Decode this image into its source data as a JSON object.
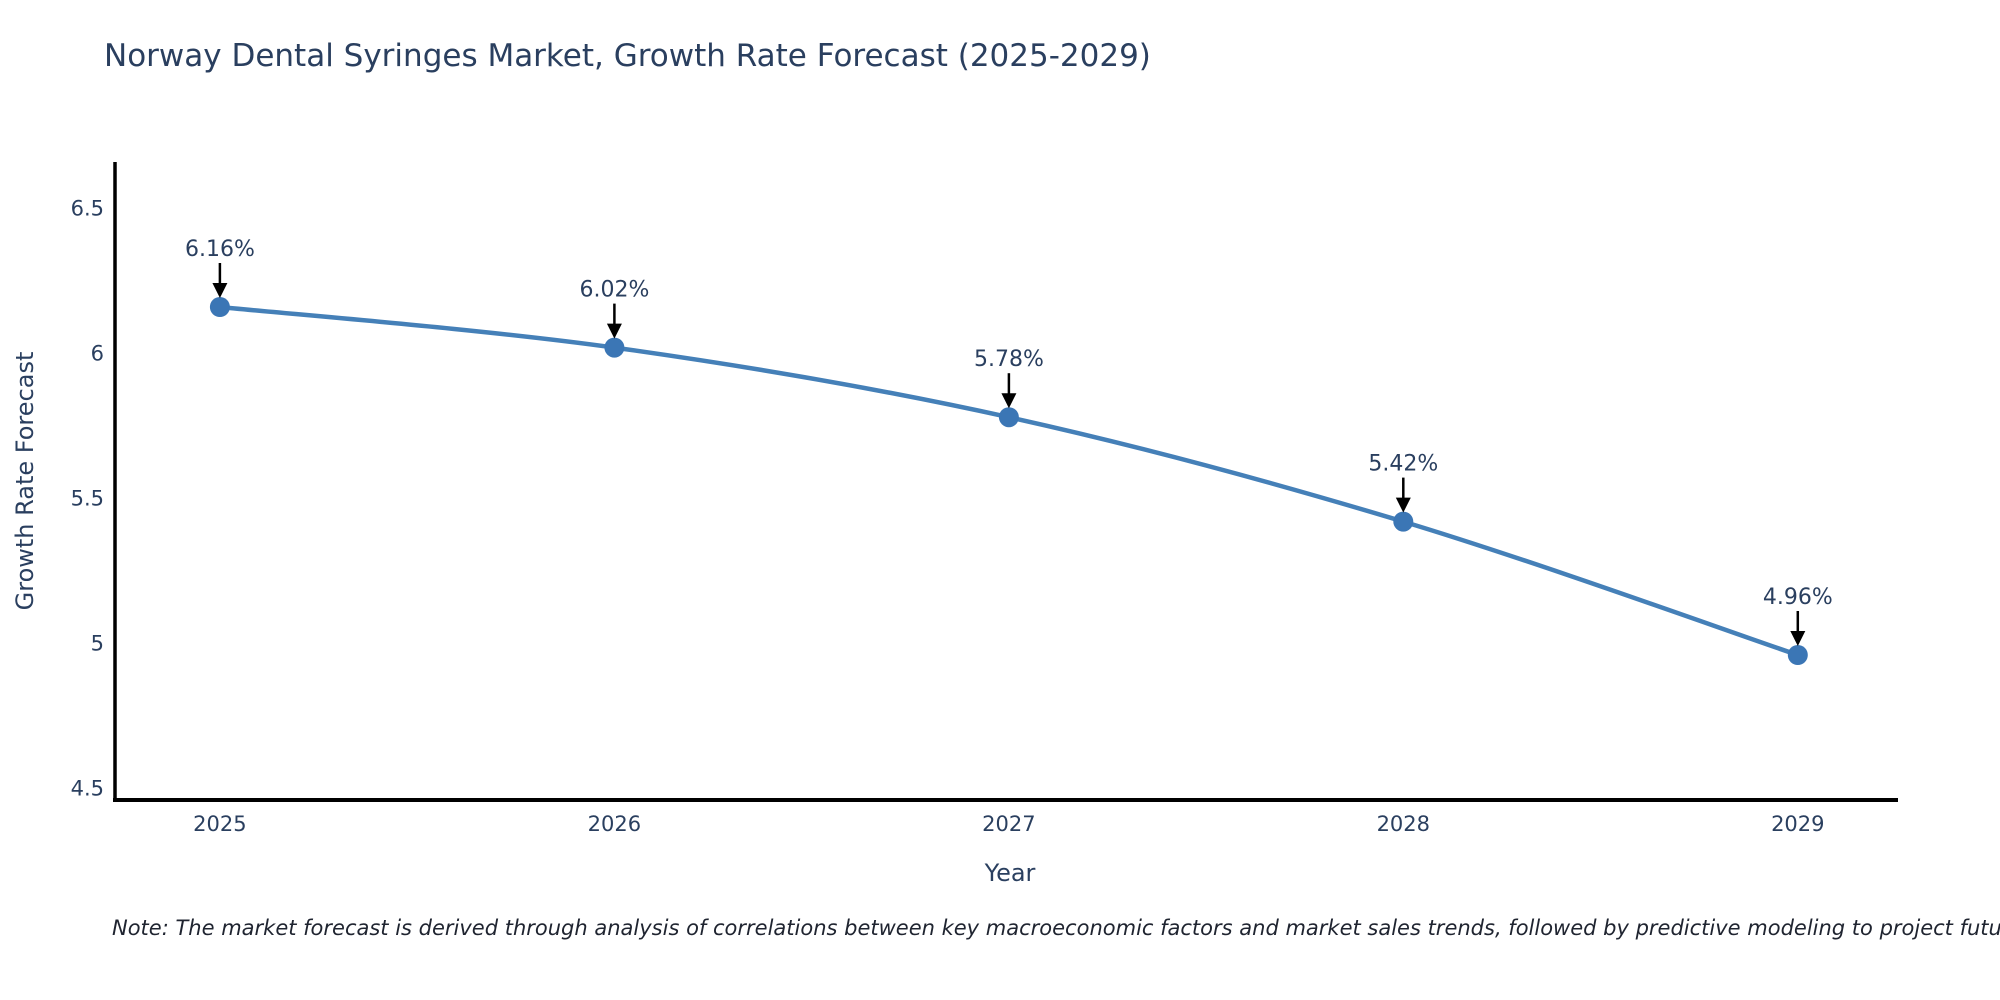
{
  "note": "Note: The market forecast is derived through analysis of correlations between key macroeconomic factors and market sales trends, followed by predictive modeling to project future sales",
  "chart_data": {
    "type": "line",
    "title": "Norway Dental Syringes Market, Growth Rate Forecast (2025-2029)",
    "xlabel": "Year",
    "ylabel": "Growth Rate Forecast",
    "x": [
      2025,
      2026,
      2027,
      2028,
      2029
    ],
    "values": [
      6.16,
      6.02,
      5.78,
      5.42,
      4.96
    ],
    "point_labels": [
      "6.16%",
      "6.02%",
      "5.78%",
      "5.42%",
      "4.96%"
    ],
    "x_tick_labels": [
      "2025",
      "2026",
      "2027",
      "2028",
      "2029"
    ],
    "y_ticks": [
      4.5,
      5,
      5.5,
      6,
      6.5
    ],
    "y_tick_labels": [
      "4.5",
      "5",
      "5.5",
      "6",
      "6.5"
    ],
    "xlim": [
      2024.734,
      2029.254
    ],
    "ylim": [
      4.46,
      6.66
    ],
    "grid": false,
    "legend": false,
    "line_shape": "spline",
    "colors": {
      "line": "#4580b8",
      "marker": "#3b76b5",
      "arrow": "#000000",
      "axis": "#000000",
      "text": "#2a3f5f"
    }
  }
}
